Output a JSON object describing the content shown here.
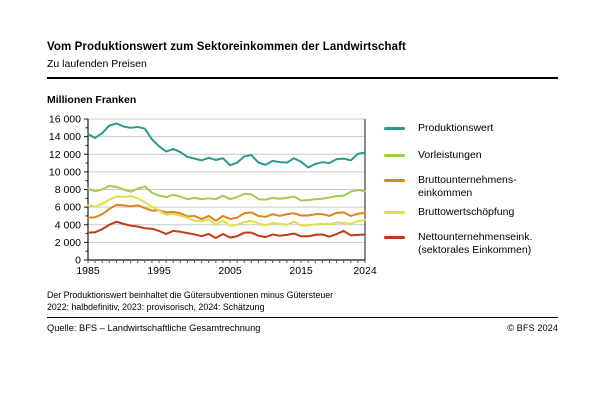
{
  "header": {
    "title": "Vom Produktionswert zum Sektoreinkommen der Landwirtschaft",
    "subtitle": "Zu laufenden Preisen",
    "unit_label": "Millionen Franken"
  },
  "legend": {
    "items": [
      {
        "line1": "Produktionswert",
        "line2": ""
      },
      {
        "line1": "Vorleistungen",
        "line2": ""
      },
      {
        "line1": "Bruttounternehmens-",
        "line2": "einkommen"
      },
      {
        "line1": "Bruttowertschöpfung",
        "line2": ""
      },
      {
        "line1": "Nettounternehmenseink.",
        "line2": "(sektorales Einkommen)"
      }
    ]
  },
  "chart_data": {
    "type": "line",
    "title": "Vom Produktionswert zum Sektoreinkommen der Landwirtschaft",
    "subtitle": "Zu laufenden Preisen",
    "ylabel": "Millionen Franken",
    "unit": "Millionen Franken",
    "grid": true,
    "legend_position": "right",
    "ylim": [
      0,
      16000
    ],
    "ytick_step": 2000,
    "ytick_labels": [
      "0",
      "2 000",
      "4 000",
      "6 000",
      "8 000",
      "10 000",
      "12 000",
      "14 000",
      "16 000"
    ],
    "xlim": [
      1985,
      2024
    ],
    "xtick_label_years": [
      1985,
      1995,
      2005,
      2015,
      2024
    ],
    "x": [
      1985,
      1986,
      1987,
      1988,
      1989,
      1990,
      1991,
      1992,
      1993,
      1994,
      1995,
      1996,
      1997,
      1998,
      1999,
      2000,
      2001,
      2002,
      2003,
      2004,
      2005,
      2006,
      2007,
      2008,
      2009,
      2010,
      2011,
      2012,
      2013,
      2014,
      2015,
      2016,
      2017,
      2018,
      2019,
      2020,
      2021,
      2022,
      2023,
      2024
    ],
    "series": [
      {
        "name": "Produktionswert",
        "color": "#2a9a8c",
        "values": [
          14300,
          13850,
          14400,
          15250,
          15500,
          15150,
          15000,
          15100,
          14900,
          13700,
          12900,
          12300,
          12600,
          12250,
          11700,
          11500,
          11300,
          11600,
          11350,
          11550,
          10750,
          11050,
          11750,
          11900,
          11050,
          10800,
          11250,
          11100,
          11050,
          11550,
          11150,
          10500,
          10900,
          11100,
          11000,
          11450,
          11500,
          11300,
          12050,
          12200
        ]
      },
      {
        "name": "Vorleistungen",
        "color": "#a0ce4e",
        "values": [
          8100,
          7800,
          8000,
          8400,
          8300,
          8000,
          7750,
          8100,
          8350,
          7650,
          7300,
          7150,
          7400,
          7200,
          6900,
          7050,
          6900,
          7000,
          6900,
          7300,
          6900,
          7150,
          7500,
          7450,
          6900,
          6850,
          7050,
          6950,
          7050,
          7200,
          6750,
          6800,
          6900,
          6950,
          7100,
          7250,
          7300,
          7750,
          7950,
          7800
        ]
      },
      {
        "name": "Bruttounternehmenseinkommen",
        "color": "#e0831f",
        "values": [
          4800,
          4850,
          5200,
          5800,
          6250,
          6200,
          6100,
          6200,
          5900,
          5600,
          5650,
          5400,
          5450,
          5300,
          4950,
          5000,
          4650,
          5000,
          4450,
          5000,
          4650,
          4800,
          5300,
          5400,
          5000,
          4900,
          5200,
          5000,
          5200,
          5300,
          5050,
          5050,
          5200,
          5200,
          5000,
          5350,
          5400,
          5000,
          5250,
          5350
        ]
      },
      {
        "name": "Bruttowertschöpfung",
        "color": "#dde045",
        "values": [
          6200,
          6050,
          6400,
          6850,
          7200,
          7150,
          7250,
          7000,
          6550,
          6050,
          5600,
          5150,
          5200,
          5050,
          4800,
          4450,
          4400,
          4600,
          4000,
          4500,
          3900,
          4000,
          4300,
          4450,
          4150,
          3950,
          4200,
          4100,
          4000,
          4350,
          3900,
          3950,
          4050,
          4100,
          4050,
          4250,
          4200,
          4100,
          4400,
          4550
        ]
      },
      {
        "name": "Nettounternehmenseink. (sektorales Einkommen)",
        "color": "#c23a1a",
        "values": [
          3100,
          3150,
          3500,
          4000,
          4350,
          4100,
          3900,
          3800,
          3600,
          3550,
          3300,
          2950,
          3300,
          3200,
          3050,
          2900,
          2700,
          2950,
          2500,
          2950,
          2550,
          2700,
          3100,
          3100,
          2750,
          2600,
          2900,
          2750,
          2850,
          3000,
          2700,
          2700,
          2850,
          2900,
          2650,
          2950,
          3300,
          2800,
          2850,
          2900
        ]
      }
    ]
  },
  "footnotes": {
    "line1": "Der Produktionswert beinhaltet die Gütersubventionen minus Gütersteuer",
    "line2": "2022: halbdefinitiv, 2023: provisorisch, 2024: Schätzung"
  },
  "footer": {
    "source": "Quelle: BFS – Landwirtschaftliche Gesamtrechnung",
    "copyright": "© BFS 2024"
  }
}
